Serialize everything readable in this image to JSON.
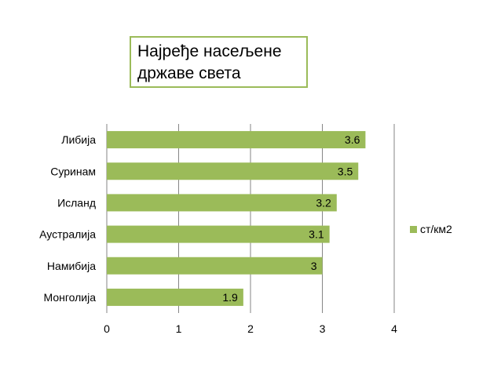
{
  "chart_data": {
    "type": "bar",
    "orientation": "horizontal",
    "title": "Најређе насељене државе света",
    "categories": [
      "Либија",
      "Суринам",
      "Исланд",
      "Аустралија",
      "Намибија",
      "Монголија"
    ],
    "series": [
      {
        "name": "ст/км2",
        "values": [
          3.6,
          3.5,
          3.2,
          3.1,
          3,
          1.9
        ],
        "color": "#9bbb59"
      }
    ],
    "data_labels": [
      "3.6",
      "3.5",
      "3.2",
      "3.1",
      "3",
      "1.9"
    ],
    "x_ticks": [
      "0",
      "1",
      "2",
      "3",
      "4"
    ],
    "xlim": [
      0,
      4
    ],
    "grid": true,
    "legend_position": "right",
    "xlabel": "",
    "ylabel": ""
  },
  "colors": {
    "bar": "#9bbb59",
    "grid": "#868686",
    "title_border": "#9bbb59"
  }
}
